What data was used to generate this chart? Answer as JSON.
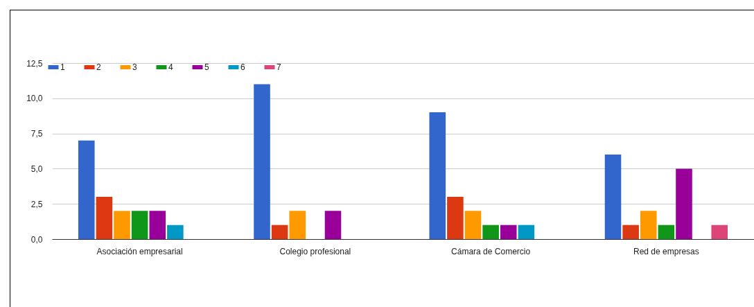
{
  "chart_data": {
    "type": "bar",
    "categories": [
      "Asociación empresarial",
      "Colegio profesional",
      "Cámara de Comercio",
      "Red de empresas"
    ],
    "series": [
      {
        "name": "1",
        "color": "#3366cc",
        "values": [
          7,
          11,
          9,
          6
        ]
      },
      {
        "name": "2",
        "color": "#dc3912",
        "values": [
          3,
          1,
          3,
          1
        ]
      },
      {
        "name": "3",
        "color": "#ff9900",
        "values": [
          2,
          2,
          2,
          2
        ]
      },
      {
        "name": "4",
        "color": "#109618",
        "values": [
          2,
          null,
          1,
          1
        ]
      },
      {
        "name": "5",
        "color": "#990099",
        "values": [
          2,
          2,
          1,
          5
        ]
      },
      {
        "name": "6",
        "color": "#0099c6",
        "values": [
          1,
          null,
          1,
          null
        ]
      },
      {
        "name": "7",
        "color": "#dd4477",
        "values": [
          null,
          null,
          null,
          1
        ]
      }
    ],
    "ylim": [
      0,
      12.5
    ],
    "yticks": [
      {
        "value": 0,
        "label": "0,0"
      },
      {
        "value": 2.5,
        "label": "2,5"
      },
      {
        "value": 5,
        "label": "5,0"
      },
      {
        "value": 7.5,
        "label": "7,5"
      },
      {
        "value": 10,
        "label": "10,0"
      },
      {
        "value": 12.5,
        "label": "12,5"
      }
    ],
    "grid": "y",
    "legend": "top left"
  }
}
